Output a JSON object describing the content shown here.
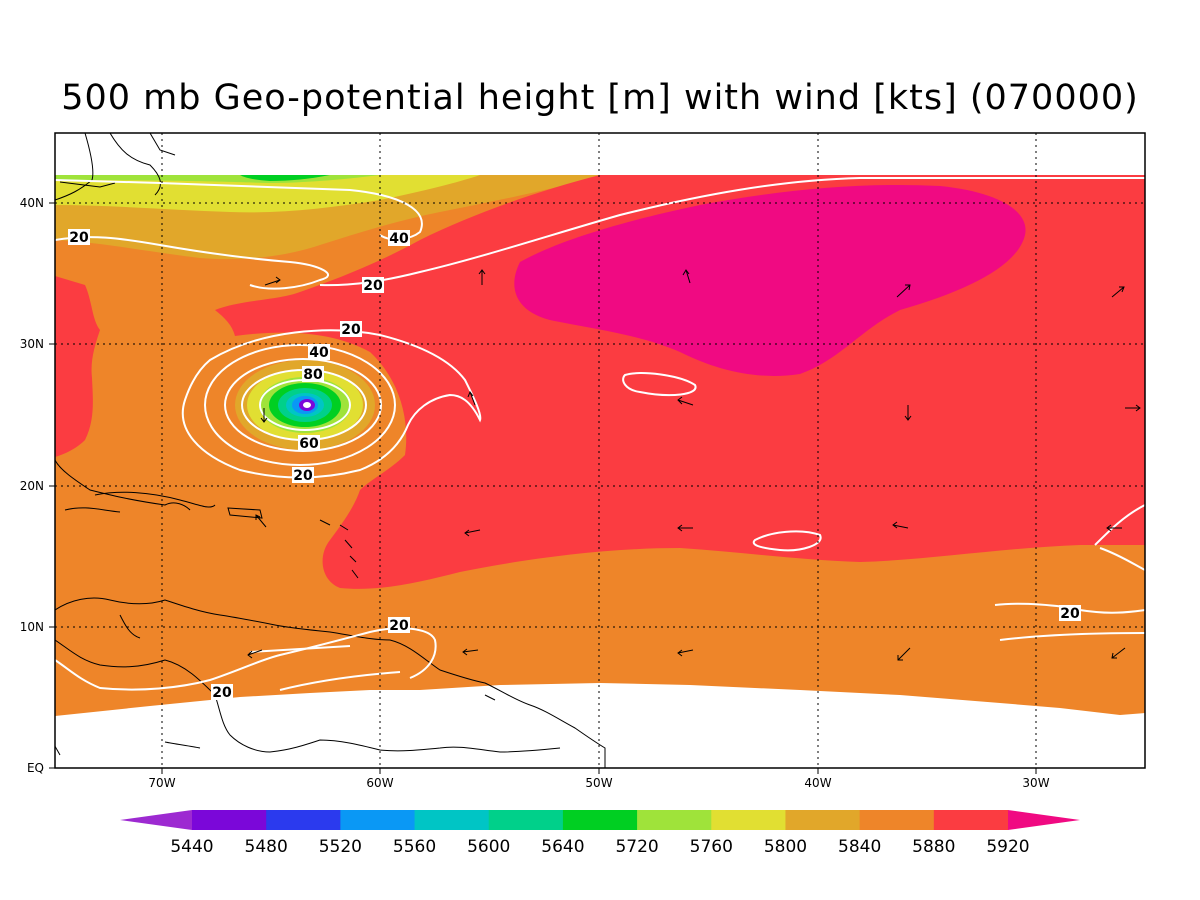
{
  "title": "500 mb Geo-potential height [m] with wind [kts] (070000)",
  "lon_ticks": [
    "70W",
    "60W",
    "50W",
    "40W",
    "30W"
  ],
  "lat_ticks": [
    "EQ",
    "10N",
    "20N",
    "30N",
    "40N"
  ],
  "contour_labels": [
    "20",
    "40",
    "20",
    "20",
    "40",
    "80",
    "60",
    "20",
    "20",
    "20",
    "20"
  ],
  "colorbar": {
    "labels": [
      "5440",
      "5480",
      "5520",
      "5560",
      "5600",
      "5640",
      "5720",
      "5760",
      "5800",
      "5840",
      "5880",
      "5920"
    ],
    "colors": [
      "#9d2ad1",
      "#7b07d9",
      "#2b3aee",
      "#0a98f5",
      "#00c5c5",
      "#00d08a",
      "#00cf22",
      "#9fe33a",
      "#e1df32",
      "#e1a72a",
      "#ee8529",
      "#fb3c41",
      "#f00a82"
    ]
  },
  "map_colors": {
    "c5880": "#ee8529",
    "c5920": "#fb3c41",
    "c5960": "#f00a82",
    "c5840": "#e1a72a",
    "c5800": "#e1df32",
    "c5760": "#9fe33a",
    "c5720": "#00cf22",
    "contour": "#ffffff",
    "coast": "#000000"
  }
}
